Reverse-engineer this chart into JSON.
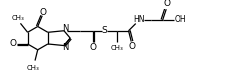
{
  "bg_color": "#ffffff",
  "line_color": "#000000",
  "line_width": 0.9,
  "font_size": 5.5,
  "dpi": 100,
  "figsize": [
    2.32,
    0.83
  ],
  "xlim": [
    0,
    232
  ],
  "ylim": [
    0,
    83
  ]
}
